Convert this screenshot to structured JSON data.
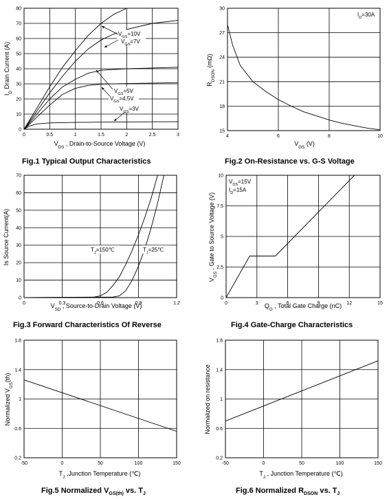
{
  "captions": {
    "fig1": "Fig.1 Typical Output Characteristics",
    "fig2": "Fig.2 On-Resistance vs. G-S Voltage",
    "fig3": "Fig.3 Forward Characteristics Of Reverse",
    "fig4": "Fig.4 Gate-Charge Characteristics",
    "fig5_pre": "Fig.5 Normalized V",
    "fig5_sub": "GS(th)",
    "fig5_post": " vs. T",
    "fig5_sub2": "J",
    "fig6_pre": "Fig.6 Normalized R",
    "fig6_sub": "DSON",
    "fig6_post": " vs. T",
    "fig6_sub2": "J"
  },
  "chart_data": [
    {
      "id": "fig1",
      "type": "line",
      "title": "Fig.1 Typical Output Characteristics",
      "xlabel": "V_DS , Drain-to-Source Voltage (V)",
      "ylabel": "I_D Drain Current (A)",
      "xlim": [
        0,
        3
      ],
      "ylim": [
        0,
        80
      ],
      "xticks": [
        "0",
        "0.5",
        "1",
        "1.5",
        "2",
        "2.5",
        "3"
      ],
      "yticks": [
        "0",
        "10",
        "20",
        "30",
        "40",
        "50",
        "60",
        "70",
        "80"
      ],
      "grid": true,
      "series": [
        {
          "name": "V_GS=10V",
          "x": [
            0,
            0.25,
            0.5,
            0.75,
            1,
            1.25,
            1.5,
            1.75,
            2
          ],
          "y": [
            0,
            14,
            28,
            41,
            52,
            62,
            70,
            76,
            80
          ]
        },
        {
          "name": "V_GS=7V",
          "x": [
            0,
            0.25,
            0.5,
            0.75,
            1,
            1.25,
            1.5,
            1.75,
            2,
            2.5,
            3
          ],
          "y": [
            0,
            12,
            24,
            35,
            45,
            53,
            59,
            63,
            66,
            70,
            72
          ]
        },
        {
          "name": "V_GS=5V",
          "x": [
            0,
            0.25,
            0.5,
            0.75,
            1,
            1.25,
            1.5,
            2,
            2.5,
            3
          ],
          "y": [
            0,
            10,
            20,
            28,
            33,
            37,
            39,
            40,
            40.5,
            41
          ]
        },
        {
          "name": "V_GS=4.5V",
          "x": [
            0,
            0.25,
            0.5,
            0.75,
            1,
            1.25,
            1.5,
            2,
            2.5,
            3
          ],
          "y": [
            0,
            8,
            16,
            23,
            27,
            29,
            29.8,
            30.2,
            30.5,
            30.8
          ]
        },
        {
          "name": "V_GS=3V",
          "x": [
            0,
            0.1,
            0.25,
            0.5,
            1,
            1.5,
            2,
            2.5,
            3
          ],
          "y": [
            0,
            2,
            3.5,
            4.2,
            4.5,
            4.7,
            4.8,
            4.9,
            5
          ]
        }
      ],
      "annotations": {
        "l10": "V_GS=10V",
        "l7": "V_GS=7V",
        "l5": "V_GS=5V",
        "l45": "V_GS=4.5V",
        "l3": "V_GS=3V"
      }
    },
    {
      "id": "fig2",
      "type": "line",
      "title": "Fig.2 On-Resistance vs. G-S Voltage",
      "xlabel": "V_GS (V)",
      "ylabel": "R_DSON (mΩ)",
      "xlim": [
        4,
        10
      ],
      "ylim": [
        15,
        30
      ],
      "xticks": [
        "4",
        "6",
        "8",
        "10"
      ],
      "yticks": [
        "15",
        "18",
        "21",
        "24",
        "27",
        "30"
      ],
      "grid": true,
      "annotation": "I_D=30A",
      "series": [
        {
          "name": "",
          "x": [
            4,
            4.2,
            4.5,
            5,
            5.5,
            6,
            6.5,
            7,
            7.5,
            8,
            8.5,
            9,
            9.5,
            10
          ],
          "y": [
            28,
            25.5,
            23,
            21,
            19.8,
            18.8,
            18,
            17.3,
            16.8,
            16.3,
            15.9,
            15.6,
            15.3,
            15.1
          ]
        }
      ]
    },
    {
      "id": "fig3",
      "type": "line",
      "title": "Fig.3 Forward Characteristics Of Reverse",
      "xlabel": "V_SD , Source-to-Drain Voltage (V)",
      "ylabel": "Is Source Current(A)",
      "xlim": [
        0,
        1.2
      ],
      "ylim": [
        0,
        70
      ],
      "xticks": [
        "0",
        "0.3",
        "0.6",
        "0.9",
        "1.2"
      ],
      "yticks": [
        "0",
        "10",
        "20",
        "30",
        "40",
        "50",
        "60",
        "70"
      ],
      "grid": true,
      "annotations": {
        "t150": "T_J=150℃",
        "t25": "T_J=25℃"
      },
      "series": [
        {
          "name": "T_J=150℃",
          "x": [
            0,
            0.55,
            0.6,
            0.65,
            0.7,
            0.75,
            0.8,
            0.85,
            0.9,
            0.95,
            1.0,
            1.05
          ],
          "y": [
            0,
            0.3,
            1,
            3,
            7,
            12,
            19,
            27,
            36,
            46,
            57,
            70
          ]
        },
        {
          "name": "T_J=25℃",
          "x": [
            0,
            0.7,
            0.75,
            0.8,
            0.85,
            0.9,
            0.95,
            1.0,
            1.05,
            1.1
          ],
          "y": [
            0,
            0.3,
            1,
            4,
            10,
            18,
            28,
            40,
            54,
            70
          ]
        }
      ]
    },
    {
      "id": "fig4",
      "type": "line",
      "title": "Fig.4 Gate-Charge Characteristics",
      "xlabel": "Q_G , Total Gate Charge (nC)",
      "ylabel": "V_GS , Gate to Source Voltage (V)",
      "xlim": [
        0,
        15
      ],
      "ylim": [
        0,
        10
      ],
      "xticks": [
        "0",
        "3",
        "6",
        "9",
        "12",
        "15"
      ],
      "yticks": [
        "0",
        "2.5",
        "5",
        "7.5",
        "10"
      ],
      "grid": true,
      "annotations": {
        "vds": "V_DS=15V",
        "id": "I_D=15A"
      },
      "series": [
        {
          "name": "",
          "x": [
            0,
            2.3,
            4.8,
            12.5
          ],
          "y": [
            0,
            3.4,
            3.4,
            10
          ]
        }
      ]
    },
    {
      "id": "fig5",
      "type": "line",
      "title": "Fig.5 Normalized V_GS(th) vs. T_J",
      "xlabel": "T_J ,Junction Temperature (℃)",
      "ylabel": "Normalized V_GS(th)",
      "xlim": [
        -50,
        150
      ],
      "ylim": [
        0.2,
        1.8
      ],
      "xticks": [
        "-50",
        "0",
        "50",
        "100",
        "150"
      ],
      "yticks": [
        "0.2",
        "0.6",
        "1",
        "1.4",
        "1.8"
      ],
      "grid": true,
      "series": [
        {
          "name": "",
          "x": [
            -50,
            150
          ],
          "y": [
            1.26,
            0.56
          ]
        }
      ]
    },
    {
      "id": "fig6",
      "type": "line",
      "title": "Fig.6 Normalized R_DSON vs. T_J",
      "xlabel": "T_J , Junction Temperature (℃)",
      "ylabel": "Normalized on resistance",
      "xlim": [
        -50,
        150
      ],
      "ylim": [
        0.2,
        1.8
      ],
      "xticks": [
        "-50",
        "0",
        "50",
        "100",
        "150"
      ],
      "yticks": [
        "0.2",
        "0.6",
        "1",
        "1.4",
        "1.8"
      ],
      "grid": true,
      "series": [
        {
          "name": "",
          "x": [
            -50,
            150
          ],
          "y": [
            0.7,
            1.52
          ]
        }
      ]
    }
  ]
}
